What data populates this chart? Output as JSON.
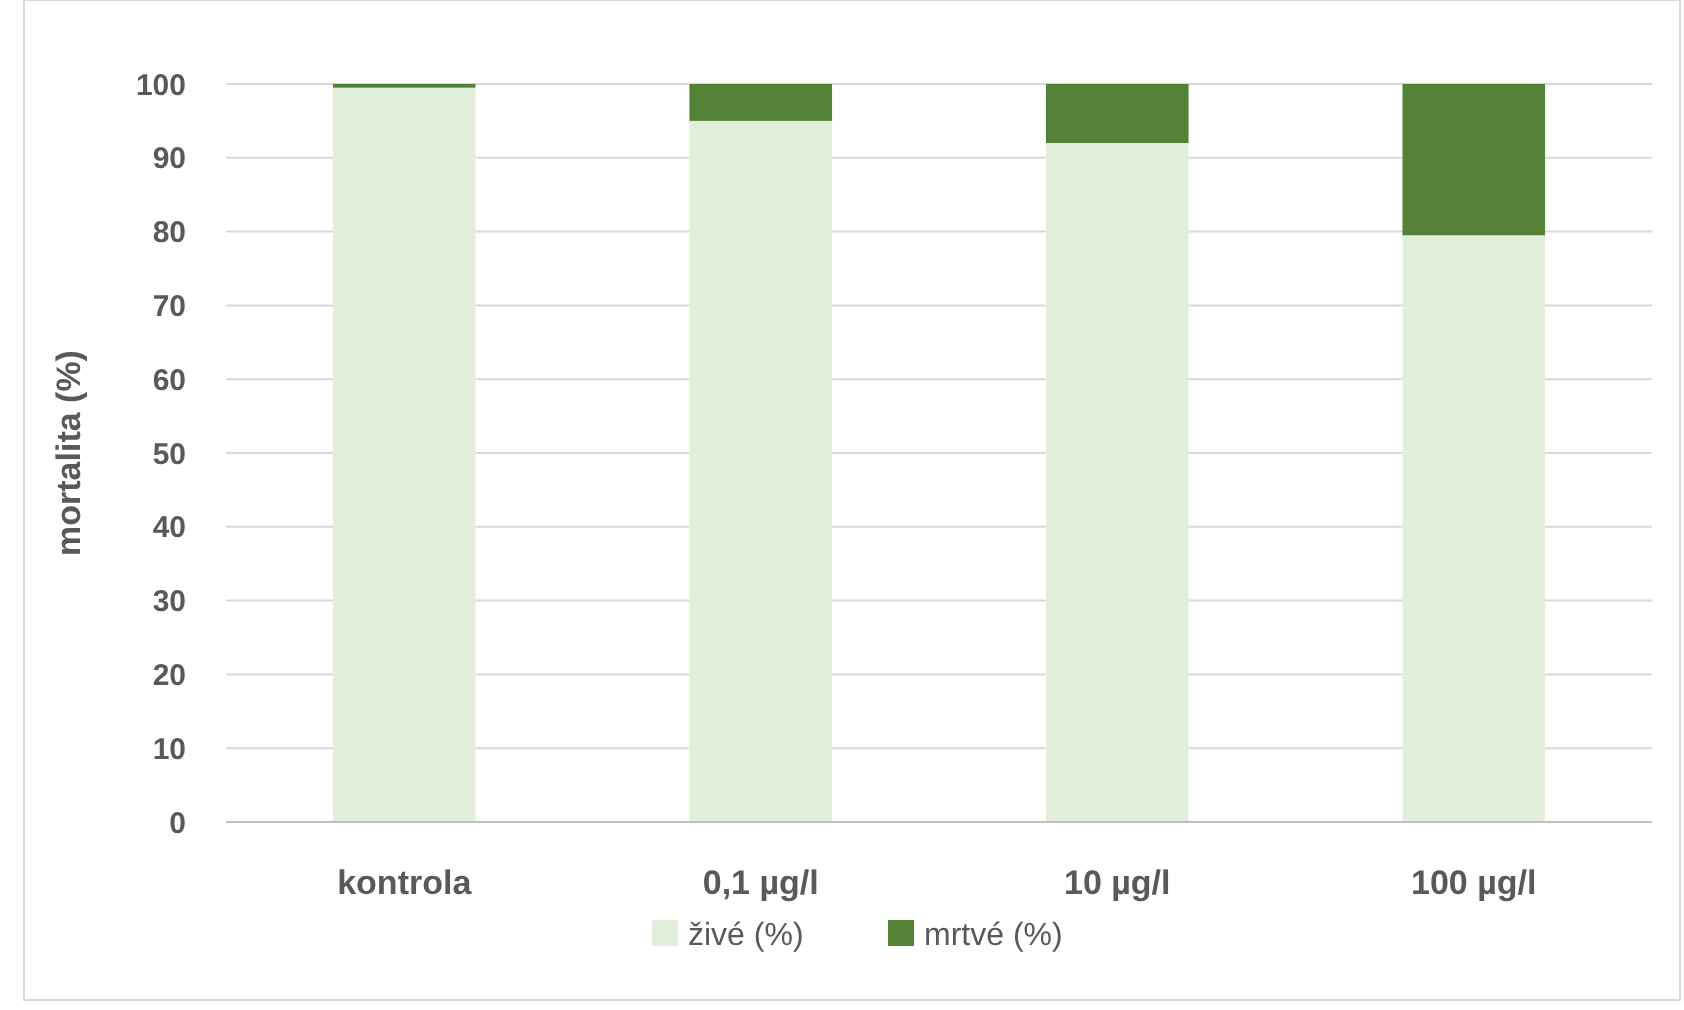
{
  "chart_data": {
    "type": "bar",
    "stacked": true,
    "ylabel": "mortalita (%)",
    "categories": [
      "kontrola",
      "0,1 µg/l",
      "10 µg/l",
      "100 µg/l"
    ],
    "series": [
      {
        "name": "živé (%)",
        "color": "#e2efda",
        "values": [
          99.5,
          95,
          92,
          79.5
        ]
      },
      {
        "name": "mrtvé (%)",
        "color": "#538135",
        "values": [
          0.5,
          5,
          8,
          20.5
        ]
      }
    ],
    "ylim": [
      0,
      100
    ],
    "yticks": [
      0,
      10,
      20,
      30,
      40,
      50,
      60,
      70,
      80,
      90,
      100
    ],
    "grid": "y",
    "legend": "bottom"
  }
}
